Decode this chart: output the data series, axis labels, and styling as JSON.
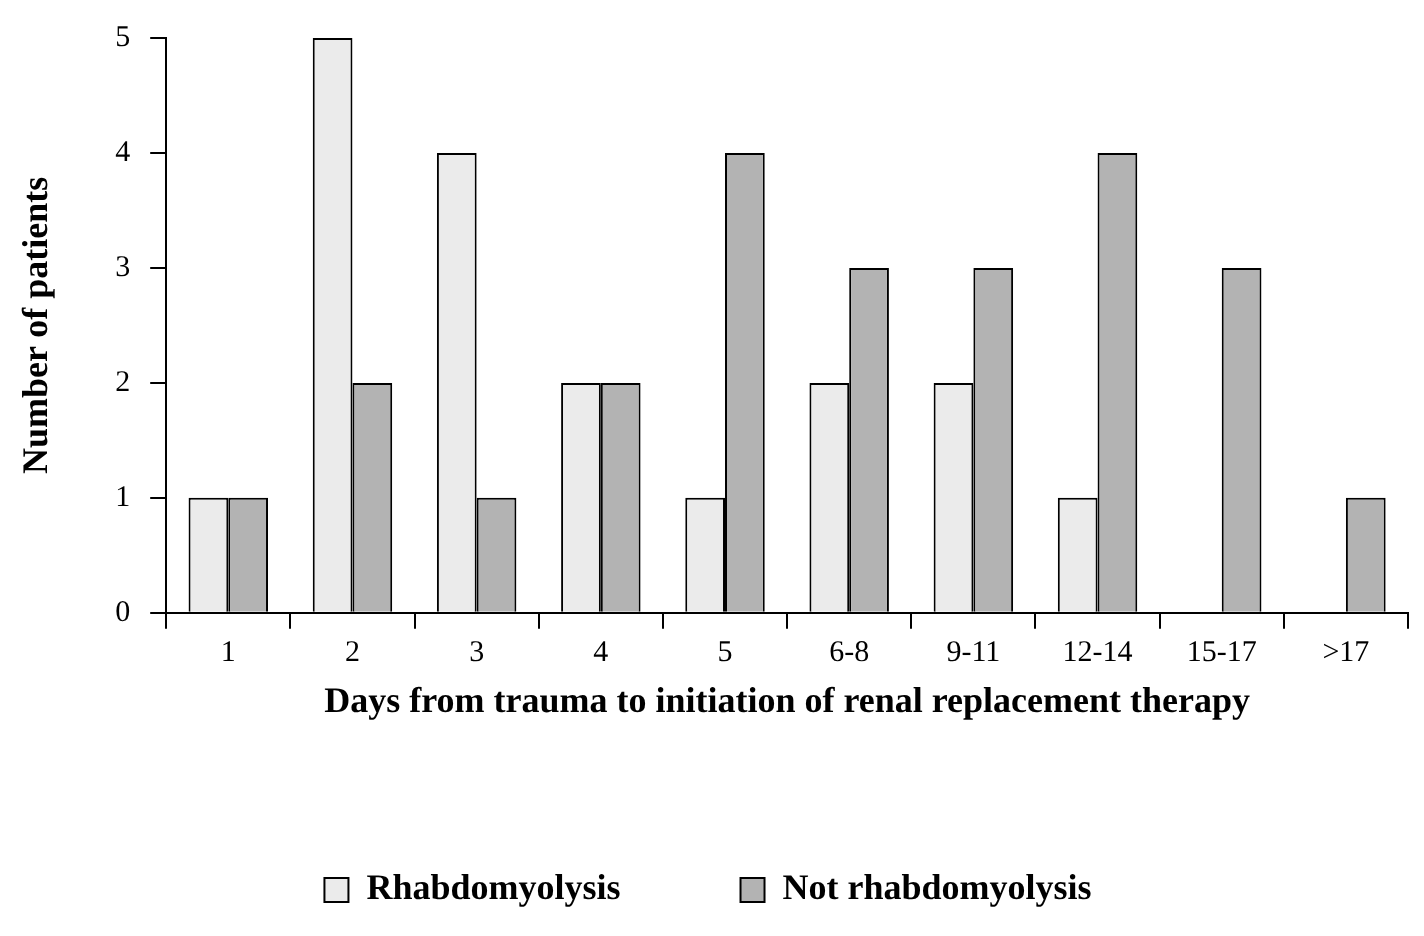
{
  "chart_data": {
    "type": "bar",
    "xlabel": "Days from trauma to initiation of renal replacement therapy",
    "ylabel": "Number of patients",
    "categories": [
      "1",
      "2",
      "3",
      "4",
      "5",
      "6-8",
      "9-11",
      "12-14",
      "15-17",
      ">17"
    ],
    "series": [
      {
        "name": "Rhabdomyolysis",
        "color": "#ebebeb",
        "values": [
          1,
          5,
          4,
          2,
          1,
          2,
          2,
          1,
          0,
          0
        ]
      },
      {
        "name": "Not rhabdomyolysis",
        "color": "#b3b3b3",
        "values": [
          1,
          2,
          1,
          2,
          4,
          3,
          3,
          4,
          3,
          1
        ]
      }
    ],
    "ylim": [
      0,
      5
    ],
    "yticks": [
      0,
      1,
      2,
      3,
      4,
      5
    ],
    "grid": false,
    "legend": "bottom"
  }
}
